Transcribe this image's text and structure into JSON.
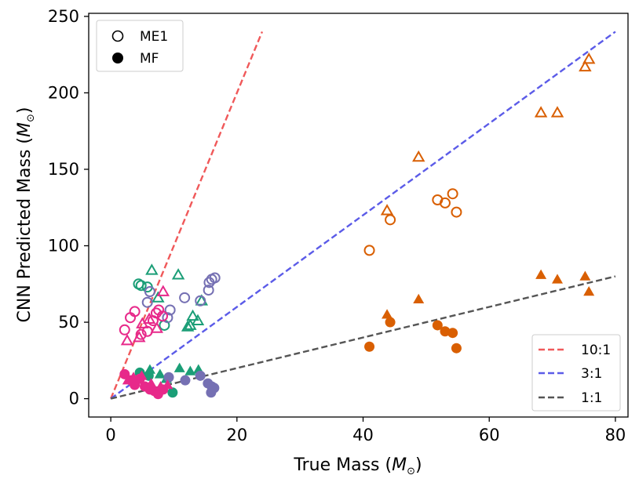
{
  "chart_data": {
    "type": "scatter",
    "xlabel": "True Mass",
    "ylabel": "CNN Predicted Mass",
    "xlim": [
      -3.5,
      82
    ],
    "ylim": [
      -12,
      252
    ],
    "x_ticks": [
      0,
      20,
      40,
      60,
      80
    ],
    "y_ticks": [
      0,
      50,
      100,
      150,
      200,
      250
    ],
    "grid": false,
    "marker_legend": {
      "placement": "top-left",
      "entries": [
        {
          "label": "ME1",
          "marker": "open-circle"
        },
        {
          "label": "MF",
          "marker": "filled-circle"
        }
      ]
    },
    "ratio_lines": {
      "placement": "bottom-right",
      "lines": [
        {
          "label": "10:1",
          "slope": 10,
          "x_end": 24,
          "color": "#f0595a"
        },
        {
          "label": "3:1",
          "slope": 3,
          "x_end": 80,
          "color": "#5b5be8"
        },
        {
          "label": "1:1",
          "slope": 1,
          "x_end": 80,
          "color": "#555555"
        }
      ]
    },
    "groups": [
      {
        "color": "#d95f02",
        "points": [
          {
            "x": 41,
            "y": 97,
            "marker": "circle",
            "filled": false
          },
          {
            "x": 44.3,
            "y": 117,
            "marker": "circle",
            "filled": false
          },
          {
            "x": 51.8,
            "y": 130,
            "marker": "circle",
            "filled": false
          },
          {
            "x": 53,
            "y": 128,
            "marker": "circle",
            "filled": false
          },
          {
            "x": 54.2,
            "y": 134,
            "marker": "circle",
            "filled": false
          },
          {
            "x": 54.8,
            "y": 122,
            "marker": "circle",
            "filled": false
          },
          {
            "x": 43.8,
            "y": 123,
            "marker": "triangle",
            "filled": false
          },
          {
            "x": 48.8,
            "y": 158,
            "marker": "triangle",
            "filled": false
          },
          {
            "x": 68.2,
            "y": 187,
            "marker": "triangle",
            "filled": false
          },
          {
            "x": 70.8,
            "y": 187,
            "marker": "triangle",
            "filled": false
          },
          {
            "x": 75.2,
            "y": 217,
            "marker": "triangle",
            "filled": false
          },
          {
            "x": 75.8,
            "y": 222,
            "marker": "triangle",
            "filled": false
          },
          {
            "x": 41,
            "y": 34,
            "marker": "circle",
            "filled": true
          },
          {
            "x": 44.3,
            "y": 50,
            "marker": "circle",
            "filled": true
          },
          {
            "x": 51.8,
            "y": 48,
            "marker": "circle",
            "filled": true
          },
          {
            "x": 53,
            "y": 44,
            "marker": "circle",
            "filled": true
          },
          {
            "x": 54.2,
            "y": 43,
            "marker": "circle",
            "filled": true
          },
          {
            "x": 54.8,
            "y": 33,
            "marker": "circle",
            "filled": true
          },
          {
            "x": 43.8,
            "y": 55,
            "marker": "triangle",
            "filled": true
          },
          {
            "x": 48.8,
            "y": 65,
            "marker": "triangle",
            "filled": true
          },
          {
            "x": 68.2,
            "y": 81,
            "marker": "triangle",
            "filled": true
          },
          {
            "x": 70.8,
            "y": 78,
            "marker": "triangle",
            "filled": true
          },
          {
            "x": 75.2,
            "y": 80,
            "marker": "triangle",
            "filled": true
          },
          {
            "x": 75.8,
            "y": 70,
            "marker": "triangle",
            "filled": true
          }
        ]
      },
      {
        "color": "#1b9e77",
        "points": [
          {
            "x": 4.4,
            "y": 75,
            "marker": "circle",
            "filled": false
          },
          {
            "x": 4.8,
            "y": 74,
            "marker": "circle",
            "filled": false
          },
          {
            "x": 5.8,
            "y": 73,
            "marker": "circle",
            "filled": false
          },
          {
            "x": 8.5,
            "y": 48,
            "marker": "circle",
            "filled": false
          },
          {
            "x": 6.5,
            "y": 84,
            "marker": "triangle",
            "filled": false
          },
          {
            "x": 10.7,
            "y": 81,
            "marker": "triangle",
            "filled": false
          },
          {
            "x": 7.5,
            "y": 66,
            "marker": "triangle",
            "filled": false
          },
          {
            "x": 13,
            "y": 54,
            "marker": "triangle",
            "filled": false
          },
          {
            "x": 13.8,
            "y": 51,
            "marker": "triangle",
            "filled": false
          },
          {
            "x": 12.6,
            "y": 48,
            "marker": "triangle",
            "filled": false
          },
          {
            "x": 12.2,
            "y": 47,
            "marker": "triangle",
            "filled": false
          },
          {
            "x": 14.4,
            "y": 64,
            "marker": "triangle",
            "filled": false
          },
          {
            "x": 4.6,
            "y": 17,
            "marker": "circle",
            "filled": true
          },
          {
            "x": 6,
            "y": 15,
            "marker": "circle",
            "filled": true
          },
          {
            "x": 9.8,
            "y": 4,
            "marker": "circle",
            "filled": true
          },
          {
            "x": 10.9,
            "y": 20,
            "marker": "triangle",
            "filled": true
          },
          {
            "x": 12.6,
            "y": 18,
            "marker": "triangle",
            "filled": true
          },
          {
            "x": 13.9,
            "y": 19,
            "marker": "triangle",
            "filled": true
          },
          {
            "x": 6.2,
            "y": 19,
            "marker": "triangle",
            "filled": true
          },
          {
            "x": 7.8,
            "y": 16,
            "marker": "triangle",
            "filled": true
          },
          {
            "x": 8.8,
            "y": 13,
            "marker": "triangle",
            "filled": true
          }
        ]
      },
      {
        "color": "#7570b3",
        "points": [
          {
            "x": 5.8,
            "y": 63,
            "marker": "circle",
            "filled": false
          },
          {
            "x": 6.2,
            "y": 70,
            "marker": "circle",
            "filled": false
          },
          {
            "x": 9,
            "y": 53,
            "marker": "circle",
            "filled": false
          },
          {
            "x": 9.4,
            "y": 58,
            "marker": "circle",
            "filled": false
          },
          {
            "x": 11.7,
            "y": 66,
            "marker": "circle",
            "filled": false
          },
          {
            "x": 14.2,
            "y": 64,
            "marker": "circle",
            "filled": false
          },
          {
            "x": 15.5,
            "y": 71,
            "marker": "circle",
            "filled": false
          },
          {
            "x": 15.6,
            "y": 76,
            "marker": "circle",
            "filled": false
          },
          {
            "x": 16,
            "y": 78,
            "marker": "circle",
            "filled": false
          },
          {
            "x": 16.5,
            "y": 79,
            "marker": "circle",
            "filled": false
          },
          {
            "x": 9.2,
            "y": 14,
            "marker": "circle",
            "filled": true
          },
          {
            "x": 11.8,
            "y": 12,
            "marker": "circle",
            "filled": true
          },
          {
            "x": 14.2,
            "y": 15,
            "marker": "circle",
            "filled": true
          },
          {
            "x": 15.4,
            "y": 10,
            "marker": "circle",
            "filled": true
          },
          {
            "x": 16,
            "y": 8,
            "marker": "circle",
            "filled": true
          },
          {
            "x": 16.4,
            "y": 7,
            "marker": "circle",
            "filled": true
          },
          {
            "x": 15.9,
            "y": 4,
            "marker": "circle",
            "filled": true
          }
        ]
      },
      {
        "color": "#e7298a",
        "points": [
          {
            "x": 2.2,
            "y": 45,
            "marker": "circle",
            "filled": false
          },
          {
            "x": 3.1,
            "y": 53,
            "marker": "circle",
            "filled": false
          },
          {
            "x": 3.8,
            "y": 57,
            "marker": "circle",
            "filled": false
          },
          {
            "x": 4.8,
            "y": 42,
            "marker": "circle",
            "filled": false
          },
          {
            "x": 5.8,
            "y": 44,
            "marker": "circle",
            "filled": false
          },
          {
            "x": 6.7,
            "y": 51,
            "marker": "circle",
            "filled": false
          },
          {
            "x": 7.2,
            "y": 56,
            "marker": "circle",
            "filled": false
          },
          {
            "x": 7.6,
            "y": 58,
            "marker": "circle",
            "filled": false
          },
          {
            "x": 8.2,
            "y": 54,
            "marker": "circle",
            "filled": false
          },
          {
            "x": 2.6,
            "y": 38,
            "marker": "triangle",
            "filled": false
          },
          {
            "x": 4.5,
            "y": 40,
            "marker": "triangle",
            "filled": false
          },
          {
            "x": 5,
            "y": 49,
            "marker": "triangle",
            "filled": false
          },
          {
            "x": 6.1,
            "y": 52,
            "marker": "triangle",
            "filled": false
          },
          {
            "x": 7.3,
            "y": 46,
            "marker": "triangle",
            "filled": false
          },
          {
            "x": 8.3,
            "y": 70,
            "marker": "triangle",
            "filled": false
          },
          {
            "x": 2.2,
            "y": 16,
            "marker": "circle",
            "filled": true
          },
          {
            "x": 3.2,
            "y": 12,
            "marker": "circle",
            "filled": true
          },
          {
            "x": 3.8,
            "y": 9,
            "marker": "circle",
            "filled": true
          },
          {
            "x": 4.6,
            "y": 13,
            "marker": "circle",
            "filled": true
          },
          {
            "x": 5.4,
            "y": 8,
            "marker": "circle",
            "filled": true
          },
          {
            "x": 6.2,
            "y": 6,
            "marker": "circle",
            "filled": true
          },
          {
            "x": 6.9,
            "y": 5,
            "marker": "circle",
            "filled": true
          },
          {
            "x": 7.5,
            "y": 3,
            "marker": "circle",
            "filled": true
          },
          {
            "x": 8.3,
            "y": 6,
            "marker": "circle",
            "filled": true
          },
          {
            "x": 2.7,
            "y": 12,
            "marker": "triangle",
            "filled": true
          },
          {
            "x": 3.6,
            "y": 14,
            "marker": "triangle",
            "filled": true
          },
          {
            "x": 4.9,
            "y": 15,
            "marker": "triangle",
            "filled": true
          },
          {
            "x": 6.4,
            "y": 10,
            "marker": "triangle",
            "filled": true
          },
          {
            "x": 7.9,
            "y": 8,
            "marker": "triangle",
            "filled": true
          },
          {
            "x": 9,
            "y": 9,
            "marker": "triangle",
            "filled": true
          }
        ]
      }
    ]
  }
}
